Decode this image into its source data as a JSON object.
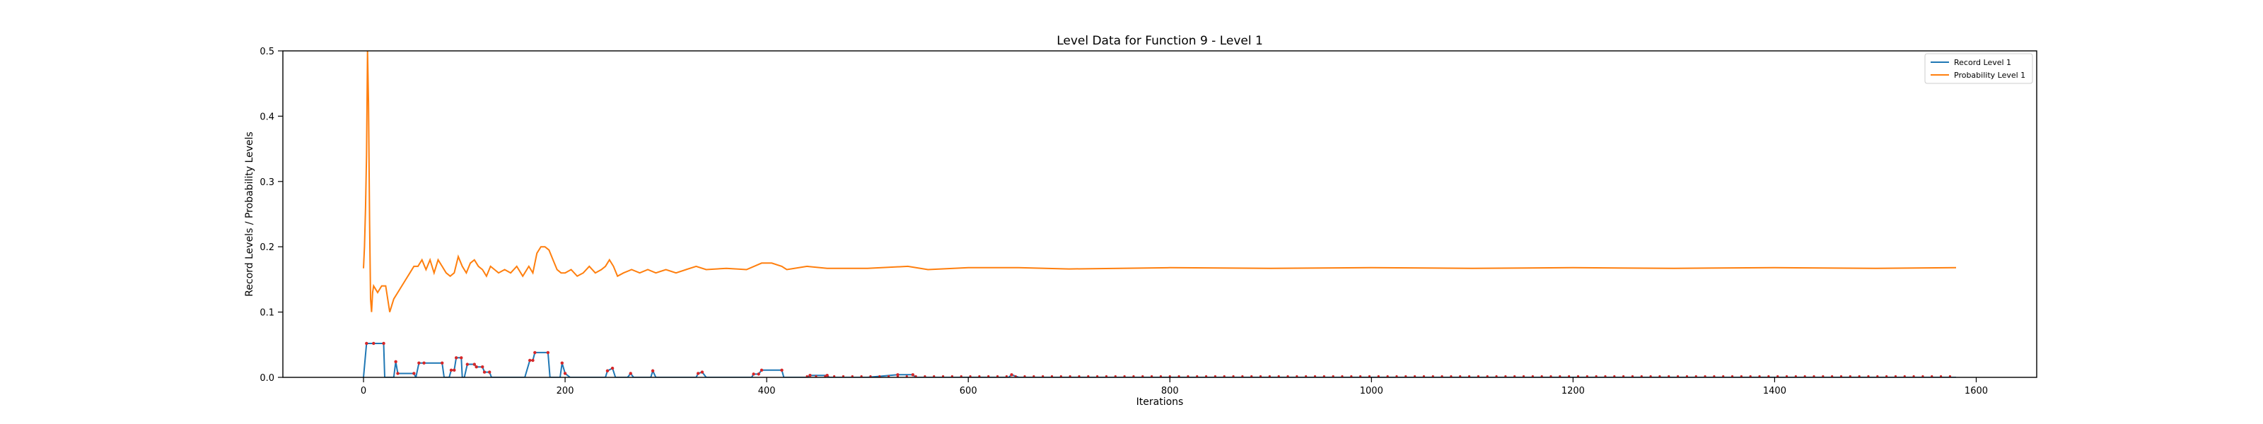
{
  "chart_data": {
    "type": "line",
    "title": "Level Data for Function 9 - Level 1",
    "xlabel": "Iterations",
    "ylabel": "Record Levels / Probability Levels",
    "xlim": [
      -80,
      1660
    ],
    "ylim": [
      0,
      0.5
    ],
    "xticks": [
      0,
      200,
      400,
      600,
      800,
      1000,
      1200,
      1400,
      1600
    ],
    "yticks": [
      0.0,
      0.1,
      0.2,
      0.3,
      0.4,
      0.5
    ],
    "xtick_labels": [
      "0",
      "200",
      "400",
      "600",
      "800",
      "1000",
      "1200",
      "1400",
      "1600"
    ],
    "ytick_labels": [
      "0.0",
      "0.1",
      "0.2",
      "0.3",
      "0.4",
      "0.5"
    ],
    "grid": false,
    "legend_position": "top-right",
    "series": [
      {
        "name": "Record Level 1",
        "color": "#1f77b4",
        "markers_color": "#d62728",
        "points": [
          [
            0,
            0
          ],
          [
            3,
            0.052
          ],
          [
            10,
            0.052
          ],
          [
            20,
            0.052
          ],
          [
            21,
            0
          ],
          [
            30,
            0
          ],
          [
            32,
            0.024
          ],
          [
            34,
            0.006
          ],
          [
            50,
            0.006
          ],
          [
            52,
            0
          ],
          [
            55,
            0.022
          ],
          [
            60,
            0.022
          ],
          [
            78,
            0.022
          ],
          [
            80,
            0
          ],
          [
            85,
            0
          ],
          [
            87,
            0.011
          ],
          [
            90,
            0.011
          ],
          [
            92,
            0.03
          ],
          [
            97,
            0.03
          ],
          [
            98,
            0
          ],
          [
            100,
            0
          ],
          [
            103,
            0.02
          ],
          [
            110,
            0.02
          ],
          [
            112,
            0.016
          ],
          [
            118,
            0.016
          ],
          [
            120,
            0.008
          ],
          [
            125,
            0.008
          ],
          [
            127,
            0
          ],
          [
            160,
            0
          ],
          [
            165,
            0.026
          ],
          [
            168,
            0.026
          ],
          [
            170,
            0.038
          ],
          [
            183,
            0.038
          ],
          [
            185,
            0
          ],
          [
            195,
            0
          ],
          [
            197,
            0.022
          ],
          [
            200,
            0.006
          ],
          [
            205,
            0
          ],
          [
            240,
            0
          ],
          [
            242,
            0.01
          ],
          [
            247,
            0.014
          ],
          [
            250,
            0
          ],
          [
            262,
            0
          ],
          [
            265,
            0.006
          ],
          [
            268,
            0
          ],
          [
            285,
            0
          ],
          [
            287,
            0.01
          ],
          [
            290,
            0
          ],
          [
            330,
            0
          ],
          [
            332,
            0.006
          ],
          [
            336,
            0.008
          ],
          [
            340,
            0
          ],
          [
            385,
            0
          ],
          [
            387,
            0.005
          ],
          [
            392,
            0.005
          ],
          [
            395,
            0.011
          ],
          [
            415,
            0.011
          ],
          [
            417,
            0
          ],
          [
            440,
            0
          ],
          [
            443,
            0.003
          ],
          [
            460,
            0.003
          ],
          [
            462,
            0
          ],
          [
            500,
            0
          ],
          [
            530,
            0.004
          ],
          [
            545,
            0.004
          ],
          [
            548,
            0
          ],
          [
            640,
            0
          ],
          [
            643,
            0.004
          ],
          [
            650,
            0
          ],
          [
            1580,
            0
          ]
        ]
      },
      {
        "name": "Probability Level 1",
        "color": "#ff7f0e",
        "points": [
          [
            0,
            0.167
          ],
          [
            1,
            0.2
          ],
          [
            2,
            0.26
          ],
          [
            3,
            0.34
          ],
          [
            4,
            0.5
          ],
          [
            5,
            0.42
          ],
          [
            6,
            0.24
          ],
          [
            7,
            0.12
          ],
          [
            8,
            0.1
          ],
          [
            9,
            0.13
          ],
          [
            10,
            0.14
          ],
          [
            14,
            0.13
          ],
          [
            18,
            0.14
          ],
          [
            22,
            0.14
          ],
          [
            26,
            0.1
          ],
          [
            30,
            0.12
          ],
          [
            34,
            0.13
          ],
          [
            38,
            0.14
          ],
          [
            42,
            0.15
          ],
          [
            46,
            0.16
          ],
          [
            50,
            0.17
          ],
          [
            54,
            0.17
          ],
          [
            58,
            0.18
          ],
          [
            62,
            0.165
          ],
          [
            66,
            0.18
          ],
          [
            70,
            0.16
          ],
          [
            74,
            0.18
          ],
          [
            78,
            0.17
          ],
          [
            82,
            0.16
          ],
          [
            86,
            0.155
          ],
          [
            90,
            0.16
          ],
          [
            94,
            0.185
          ],
          [
            98,
            0.17
          ],
          [
            102,
            0.16
          ],
          [
            106,
            0.175
          ],
          [
            110,
            0.18
          ],
          [
            114,
            0.17
          ],
          [
            118,
            0.165
          ],
          [
            122,
            0.155
          ],
          [
            126,
            0.17
          ],
          [
            130,
            0.165
          ],
          [
            134,
            0.16
          ],
          [
            140,
            0.165
          ],
          [
            146,
            0.16
          ],
          [
            152,
            0.17
          ],
          [
            158,
            0.155
          ],
          [
            164,
            0.17
          ],
          [
            168,
            0.16
          ],
          [
            172,
            0.19
          ],
          [
            176,
            0.2
          ],
          [
            180,
            0.2
          ],
          [
            184,
            0.195
          ],
          [
            188,
            0.18
          ],
          [
            192,
            0.165
          ],
          [
            196,
            0.16
          ],
          [
            200,
            0.16
          ],
          [
            206,
            0.165
          ],
          [
            212,
            0.155
          ],
          [
            218,
            0.16
          ],
          [
            224,
            0.17
          ],
          [
            230,
            0.16
          ],
          [
            236,
            0.165
          ],
          [
            240,
            0.17
          ],
          [
            244,
            0.18
          ],
          [
            248,
            0.17
          ],
          [
            252,
            0.155
          ],
          [
            258,
            0.16
          ],
          [
            266,
            0.165
          ],
          [
            274,
            0.16
          ],
          [
            282,
            0.165
          ],
          [
            290,
            0.16
          ],
          [
            300,
            0.165
          ],
          [
            310,
            0.16
          ],
          [
            320,
            0.165
          ],
          [
            330,
            0.17
          ],
          [
            340,
            0.165
          ],
          [
            360,
            0.167
          ],
          [
            380,
            0.165
          ],
          [
            395,
            0.175
          ],
          [
            405,
            0.175
          ],
          [
            415,
            0.17
          ],
          [
            420,
            0.165
          ],
          [
            440,
            0.17
          ],
          [
            460,
            0.167
          ],
          [
            500,
            0.167
          ],
          [
            540,
            0.17
          ],
          [
            560,
            0.165
          ],
          [
            600,
            0.168
          ],
          [
            650,
            0.168
          ],
          [
            700,
            0.166
          ],
          [
            800,
            0.168
          ],
          [
            900,
            0.167
          ],
          [
            1000,
            0.168
          ],
          [
            1100,
            0.167
          ],
          [
            1200,
            0.168
          ],
          [
            1300,
            0.167
          ],
          [
            1400,
            0.168
          ],
          [
            1500,
            0.167
          ],
          [
            1580,
            0.168
          ]
        ]
      }
    ]
  }
}
